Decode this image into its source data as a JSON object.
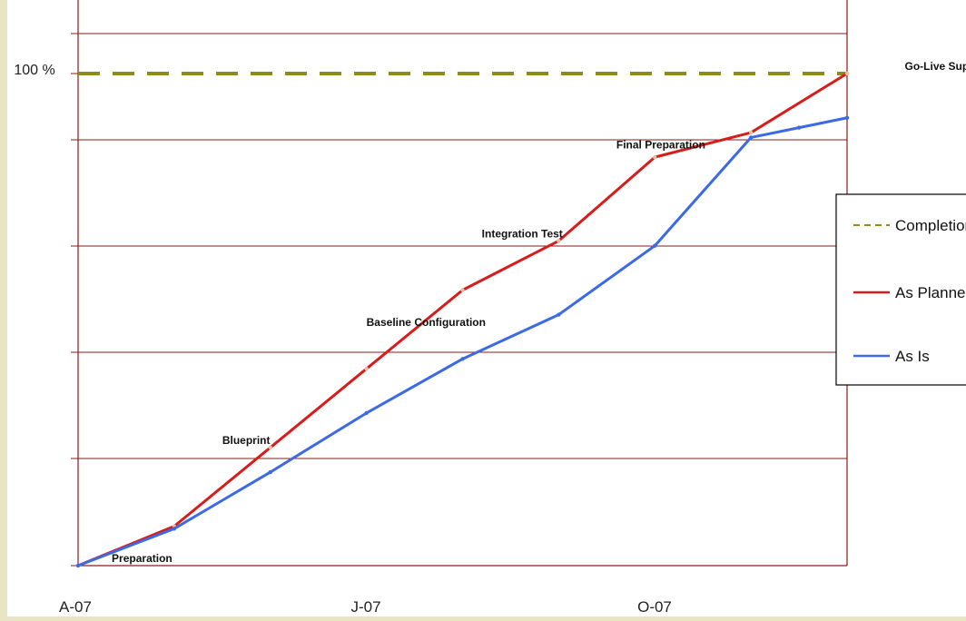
{
  "chart_data": {
    "type": "line",
    "x": [
      "A-07",
      "J-07",
      "O-07"
    ],
    "ylim": [
      0,
      105
    ],
    "y_tick_label": "100 %",
    "grid": true,
    "legend_position": "right",
    "annotations": [
      {
        "text": "Preparation",
        "x": 0.35,
        "y": 0
      },
      {
        "text": "Blueprint",
        "x": 1.5,
        "y": 24
      },
      {
        "text": "Baseline Configuration",
        "x": 3.0,
        "y": 48
      },
      {
        "text": "Integration Test",
        "x": 4.2,
        "y": 66
      },
      {
        "text": "Final Preparation",
        "x": 5.6,
        "y": 84
      },
      {
        "text": "Go-Live Support",
        "x": 8.6,
        "y": 100
      }
    ],
    "series": [
      {
        "name": "Completion",
        "style": "dashed",
        "color": "#8c8c1a",
        "x": [
          0,
          8
        ],
        "y": [
          100,
          100
        ]
      },
      {
        "name": "As Planned",
        "style": "solid",
        "color": "#d81b1b",
        "x": [
          0,
          1,
          2,
          3,
          4,
          5,
          6,
          7,
          8
        ],
        "y": [
          0,
          8,
          24,
          40,
          56,
          66,
          83,
          88,
          100
        ]
      },
      {
        "name": "As Is",
        "style": "solid",
        "color": "#3c6ae6",
        "x": [
          0,
          1,
          2,
          3,
          4,
          5,
          6,
          7,
          7.5,
          8
        ],
        "y": [
          0,
          7.5,
          19,
          31,
          42,
          51,
          65,
          87,
          89,
          91
        ]
      }
    ]
  }
}
